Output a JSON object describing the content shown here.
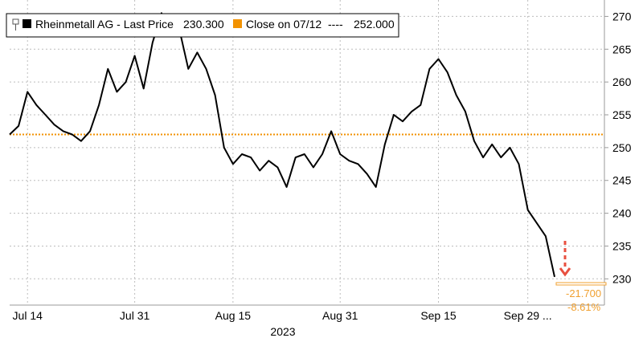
{
  "legend": {
    "series_label": "Rheinmetall AG - Last Price",
    "series_value": "230.300",
    "ref_label": "Close on 07/12",
    "ref_dashes": "----",
    "ref_value": "252.000"
  },
  "annotation": {
    "change_abs": "-21.700",
    "change_pct": "-8.61%"
  },
  "colors": {
    "series": "#000000",
    "reference": "#f29200",
    "change_text": "#f0a030",
    "arrow": "#e85040",
    "grid": "#bdbdbd"
  },
  "chart_data": {
    "type": "line",
    "title": "",
    "xlabel": "2023",
    "ylabel": "",
    "ylim": [
      226,
      272.5
    ],
    "y_ticks": [
      230,
      235,
      240,
      245,
      250,
      255,
      260,
      265,
      270
    ],
    "x_ticks": [
      "Jul 14",
      "Jul 31",
      "Aug 15",
      "Aug 31",
      "Sep 15",
      "Sep 29 ..."
    ],
    "x_tick_index": [
      2,
      14,
      25,
      37,
      48,
      58
    ],
    "grid": true,
    "reference_line": {
      "label": "Close on 07/12",
      "value": 252.0
    },
    "last_value": 230.3,
    "series": [
      {
        "name": "Rheinmetall AG - Last Price",
        "dates": [
          "07/12",
          "07/13",
          "07/14",
          "07/17",
          "07/18",
          "07/19",
          "07/20",
          "07/21",
          "07/24",
          "07/25",
          "07/26",
          "07/27",
          "07/28",
          "07/31",
          "08/01",
          "08/02",
          "08/03",
          "08/04",
          "08/07",
          "08/08",
          "08/09",
          "08/10",
          "08/11",
          "08/14",
          "08/15",
          "08/16",
          "08/17",
          "08/18",
          "08/21",
          "08/22",
          "08/23",
          "08/24",
          "08/25",
          "08/28",
          "08/29",
          "08/30",
          "08/31",
          "09/01",
          "09/04",
          "09/05",
          "09/06",
          "09/07",
          "09/08",
          "09/11",
          "09/12",
          "09/13",
          "09/14",
          "09/15",
          "09/18",
          "09/19",
          "09/20",
          "09/21",
          "09/22",
          "09/25",
          "09/26",
          "09/27",
          "09/28",
          "09/29",
          "10/02",
          "10/03",
          "10/04",
          "10/05"
        ],
        "values": [
          252.0,
          253.3,
          258.5,
          256.5,
          255.0,
          253.5,
          252.5,
          252.0,
          251.0,
          252.5,
          256.5,
          262.0,
          258.5,
          260.0,
          264.0,
          259.0,
          266.0,
          270.5,
          267.0,
          268.0,
          262.0,
          264.5,
          262.0,
          258.0,
          250.0,
          247.5,
          249.0,
          248.5,
          246.5,
          248.0,
          247.0,
          244.0,
          248.5,
          249.0,
          247.0,
          249.0,
          252.5,
          249.0,
          248.0,
          247.5,
          246.0,
          244.0,
          250.5,
          255.0,
          254.0,
          255.5,
          256.5,
          262.0,
          263.5,
          261.5,
          258.0,
          255.5,
          251.0,
          248.5,
          250.5,
          248.5,
          250.0,
          247.5,
          240.5,
          238.5,
          236.5,
          230.3
        ]
      }
    ]
  }
}
